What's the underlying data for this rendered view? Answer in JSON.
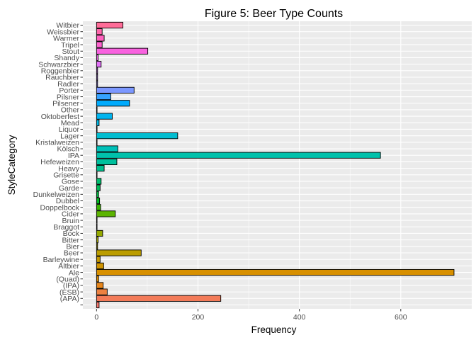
{
  "chart_data": {
    "type": "bar",
    "orientation": "horizontal",
    "title": "Figure 5: Beer Type Counts",
    "xlabel": "Frequency",
    "ylabel": "StyleCategory",
    "xlim": [
      -27,
      740
    ],
    "x_ticks": [
      0,
      200,
      400,
      600
    ],
    "grid": true,
    "legend": "none",
    "categories": [
      "",
      "(APA)",
      "(ESB)",
      "(IPA)",
      "(Quad)",
      "Ale",
      "Altbier",
      "Barleywine",
      "Beer",
      "Bier",
      "Bitter",
      "Bock",
      "Braggot",
      "Bruin",
      "Cider",
      "Doppelbock",
      "Dubbel",
      "Dunkelweizen",
      "Garde",
      "Gose",
      "Grisette",
      "Heavy",
      "Hefeweizen",
      "IPA",
      "Kölsch",
      "Kristalweizen",
      "Lager",
      "Liquor",
      "Mead",
      "Oktoberfest",
      "Other",
      "Pilsener",
      "Pilsner",
      "Porter",
      "Radler",
      "Rauchbier",
      "Roggenbier",
      "Schwarzbier",
      "Shandy",
      "Stout",
      "Tripel",
      "Warmer",
      "Weissbier",
      "Witbier"
    ],
    "values": [
      5,
      245,
      21,
      13,
      4,
      705,
      14,
      7,
      88,
      2,
      3,
      12,
      1,
      1,
      37,
      8,
      6,
      4,
      7,
      9,
      1,
      15,
      40,
      560,
      42,
      1,
      160,
      1,
      5,
      31,
      1,
      65,
      28,
      74,
      2,
      2,
      2,
      9,
      3,
      101,
      11,
      15,
      11,
      52
    ],
    "colors": [
      "#F8766D",
      "#F37B59",
      "#ED8141",
      "#E7861B",
      "#E08B00",
      "#D89000",
      "#CF9400",
      "#C59900",
      "#BB9D00",
      "#AFA100",
      "#A3A500",
      "#95A900",
      "#85AD00",
      "#72B000",
      "#5BB300",
      "#39B600",
      "#00B81F",
      "#00BA42",
      "#00BC59",
      "#00BD6D",
      "#00BF7F",
      "#00C08E",
      "#00C09D",
      "#00C1AB",
      "#00C0B8",
      "#00BFC4",
      "#00BDD0",
      "#00BBDB",
      "#00B8E5",
      "#00B4EF",
      "#00B0F6",
      "#00ABFD",
      "#35A2FF",
      "#7C98FF",
      "#9F8CFF",
      "#B983FF",
      "#CF78FF",
      "#E16FF7",
      "#EE67EB",
      "#F863DF",
      "#FF61CF",
      "#FF63BF",
      "#FF66AC",
      "#FF6C98"
    ]
  }
}
